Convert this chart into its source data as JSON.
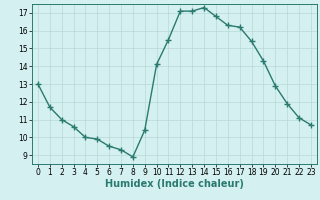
{
  "x": [
    0,
    1,
    2,
    3,
    4,
    5,
    6,
    7,
    8,
    9,
    10,
    11,
    12,
    13,
    14,
    15,
    16,
    17,
    18,
    19,
    20,
    21,
    22,
    23
  ],
  "y": [
    13,
    11.7,
    11.0,
    10.6,
    10.0,
    9.9,
    9.5,
    9.3,
    8.9,
    10.4,
    14.1,
    15.5,
    17.1,
    17.1,
    17.3,
    16.8,
    16.3,
    16.2,
    15.4,
    14.3,
    12.9,
    11.9,
    11.1,
    10.7
  ],
  "line_color": "#2a7a6f",
  "marker": "+",
  "markersize": 4,
  "linewidth": 1.0,
  "xlabel": "Humidex (Indice chaleur)",
  "xlabel_fontsize": 7,
  "bg_color": "#d4f0f0",
  "grid_color": "#b8d8d8",
  "xlim": [
    -0.5,
    23.5
  ],
  "ylim": [
    8.5,
    17.5
  ],
  "yticks": [
    9,
    10,
    11,
    12,
    13,
    14,
    15,
    16,
    17
  ],
  "xticks": [
    0,
    1,
    2,
    3,
    4,
    5,
    6,
    7,
    8,
    9,
    10,
    11,
    12,
    13,
    14,
    15,
    16,
    17,
    18,
    19,
    20,
    21,
    22,
    23
  ],
  "tick_fontsize": 5.5
}
